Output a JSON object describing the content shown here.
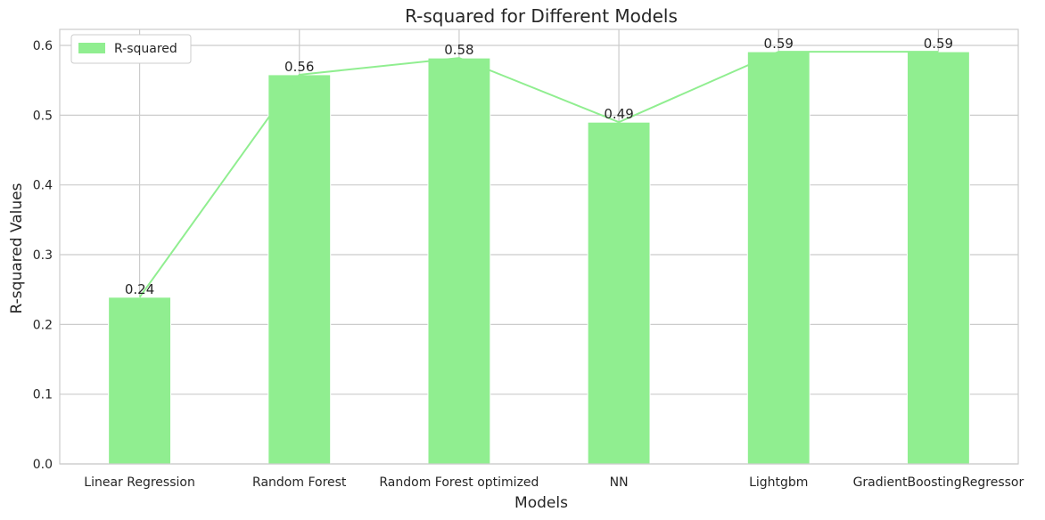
{
  "chart_data": {
    "type": "bar",
    "title": "R-squared for Different Models",
    "xlabel": "Models",
    "ylabel": "R-squared Values",
    "categories": [
      "Linear Regression",
      "Random Forest",
      "Random Forest optimized",
      "NN",
      "Lightgbm",
      "GradientBoostingRegressor"
    ],
    "series": [
      {
        "name": "R-squared",
        "values": [
          0.239,
          0.558,
          0.582,
          0.49,
          0.591,
          0.591
        ],
        "color": "#90ee90"
      }
    ],
    "bar_labels": [
      "0.24",
      "0.56",
      "0.58",
      "0.49",
      "0.59",
      "0.59"
    ],
    "overlay_line": {
      "values": [
        0.239,
        0.558,
        0.582,
        0.49,
        0.591,
        0.591
      ],
      "color": "#90ee90"
    },
    "ylim": [
      0,
      0.623
    ],
    "yticks": [
      0.0,
      0.1,
      0.2,
      0.3,
      0.4,
      0.5,
      0.6
    ],
    "ytick_labels": [
      "0.0",
      "0.1",
      "0.2",
      "0.3",
      "0.4",
      "0.5",
      "0.6"
    ],
    "grid": true,
    "legend_position": "top-left"
  }
}
